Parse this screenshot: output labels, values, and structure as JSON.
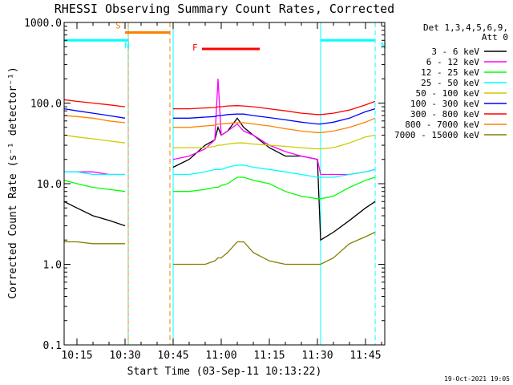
{
  "chart_data": {
    "type": "line",
    "title": "RHESSI Observing Summary Count Rates, Corrected",
    "xlabel": "Start Time (03-Sep-11 10:13:22)",
    "ylabel": "Corrected Count Rate (s⁻¹ detector⁻¹)",
    "y_scale": "log",
    "ylim": [
      0.1,
      1000
    ],
    "xlim": [
      "10:11",
      "11:51"
    ],
    "x_ticks": [
      "10:15",
      "10:30",
      "10:45",
      "11:00",
      "11:15",
      "11:30",
      "11:45"
    ],
    "y_ticks": [
      "0.1",
      "1.0",
      "10.0",
      "100.0",
      "1000.0"
    ],
    "legend_header": [
      "Det 1,3,4,5,6,9,",
      "Att 0"
    ],
    "legend_position": "right",
    "footer_timestamp": "19-Oct-2021 19:05",
    "annotations": [
      {
        "label": "S",
        "x": [
          "10:30",
          "10:44"
        ],
        "y": 750,
        "color": "#ff8000"
      },
      {
        "label": "N",
        "x": [
          "10:11",
          "10:31"
        ],
        "y": 600,
        "color": "#00ffff"
      },
      {
        "label": "N",
        "x": [
          "11:31",
          "11:48"
        ],
        "y": 600,
        "color": "#00ffff"
      },
      {
        "label": "F",
        "x": [
          "10:54",
          "11:12"
        ],
        "y": 470,
        "color": "#ff0000"
      }
    ],
    "vlines": [
      {
        "x": "10:11",
        "color": "#00ffff",
        "style": "solid"
      },
      {
        "x": "10:31",
        "color": "#00ffff",
        "style": "solid"
      },
      {
        "x": "10:31",
        "color": "#ff8000",
        "style": "dashed"
      },
      {
        "x": "10:44",
        "color": "#ff8000",
        "style": "dashed"
      },
      {
        "x": "10:45",
        "color": "#00ffff",
        "style": "solid"
      },
      {
        "x": "11:31",
        "color": "#00ffff",
        "style": "solid"
      },
      {
        "x": "11:48",
        "color": "#00ffff",
        "style": "dashed"
      }
    ],
    "segments": [
      [
        "10:11",
        "10:31"
      ],
      [
        "10:45",
        "11:48"
      ]
    ],
    "x": [
      "10:11",
      "10:15",
      "10:20",
      "10:25",
      "10:30",
      "10:45",
      "10:50",
      "10:55",
      "10:58",
      "10:59",
      "11:00",
      "11:02",
      "11:05",
      "11:07",
      "11:10",
      "11:15",
      "11:20",
      "11:25",
      "11:30",
      "11:31",
      "11:35",
      "11:40",
      "11:45",
      "11:48"
    ],
    "series": [
      {
        "name": "3 - 6 keV",
        "color": "#000000",
        "values": [
          6,
          5,
          4,
          3.5,
          3,
          16,
          20,
          30,
          35,
          50,
          40,
          45,
          65,
          50,
          40,
          28,
          22,
          22,
          20,
          2,
          2.5,
          3.5,
          5,
          6
        ]
      },
      {
        "name": "6 - 12 keV",
        "color": "#ff00ff",
        "values": [
          14,
          14,
          14,
          13,
          13,
          20,
          22,
          27,
          35,
          200,
          40,
          45,
          55,
          45,
          40,
          30,
          25,
          22,
          20,
          13,
          13,
          13,
          14,
          15
        ]
      },
      {
        "name": "12 - 25 keV",
        "color": "#00ff00",
        "values": [
          11,
          10,
          9,
          8.5,
          8,
          8,
          8,
          8.5,
          9,
          9,
          9.5,
          10,
          12,
          12,
          11,
          10,
          8,
          7,
          6.5,
          6.5,
          7,
          9,
          11,
          12
        ]
      },
      {
        "name": "25 - 50 keV",
        "color": "#00ffff",
        "values": [
          14,
          14,
          13,
          13,
          13,
          13,
          13,
          14,
          15,
          15,
          15,
          16,
          17,
          17,
          16,
          15,
          14,
          13,
          12,
          12,
          12,
          13,
          14,
          15
        ]
      },
      {
        "name": "50 - 100 keV",
        "color": "#cccc00",
        "values": [
          40,
          38,
          36,
          34,
          32,
          28,
          28,
          28,
          29,
          30,
          30,
          31,
          32,
          32,
          31,
          30,
          29,
          28,
          27,
          27,
          28,
          32,
          38,
          40
        ]
      },
      {
        "name": "100 - 300 keV",
        "color": "#0000ff",
        "values": [
          85,
          80,
          75,
          70,
          65,
          65,
          65,
          67,
          68,
          70,
          70,
          72,
          73,
          73,
          70,
          66,
          62,
          58,
          55,
          55,
          58,
          65,
          78,
          85
        ]
      },
      {
        "name": "300 - 800 keV",
        "color": "#ff0000",
        "values": [
          110,
          105,
          100,
          95,
          90,
          85,
          85,
          87,
          88,
          90,
          90,
          92,
          93,
          92,
          90,
          85,
          80,
          75,
          72,
          72,
          75,
          82,
          95,
          105
        ]
      },
      {
        "name": "800 - 7000 keV",
        "color": "#ff8000",
        "values": [
          70,
          68,
          65,
          60,
          57,
          50,
          50,
          52,
          53,
          55,
          55,
          56,
          57,
          57,
          55,
          52,
          48,
          45,
          43,
          43,
          45,
          50,
          58,
          65
        ]
      },
      {
        "name": "7000 - 15000 keV",
        "color": "#808000",
        "values": [
          1.9,
          1.9,
          1.8,
          1.8,
          1.8,
          1.0,
          1.0,
          1.0,
          1.1,
          1.2,
          1.2,
          1.4,
          1.9,
          1.9,
          1.4,
          1.1,
          1.0,
          1.0,
          1.0,
          1.0,
          1.2,
          1.8,
          2.2,
          2.5
        ]
      }
    ]
  }
}
